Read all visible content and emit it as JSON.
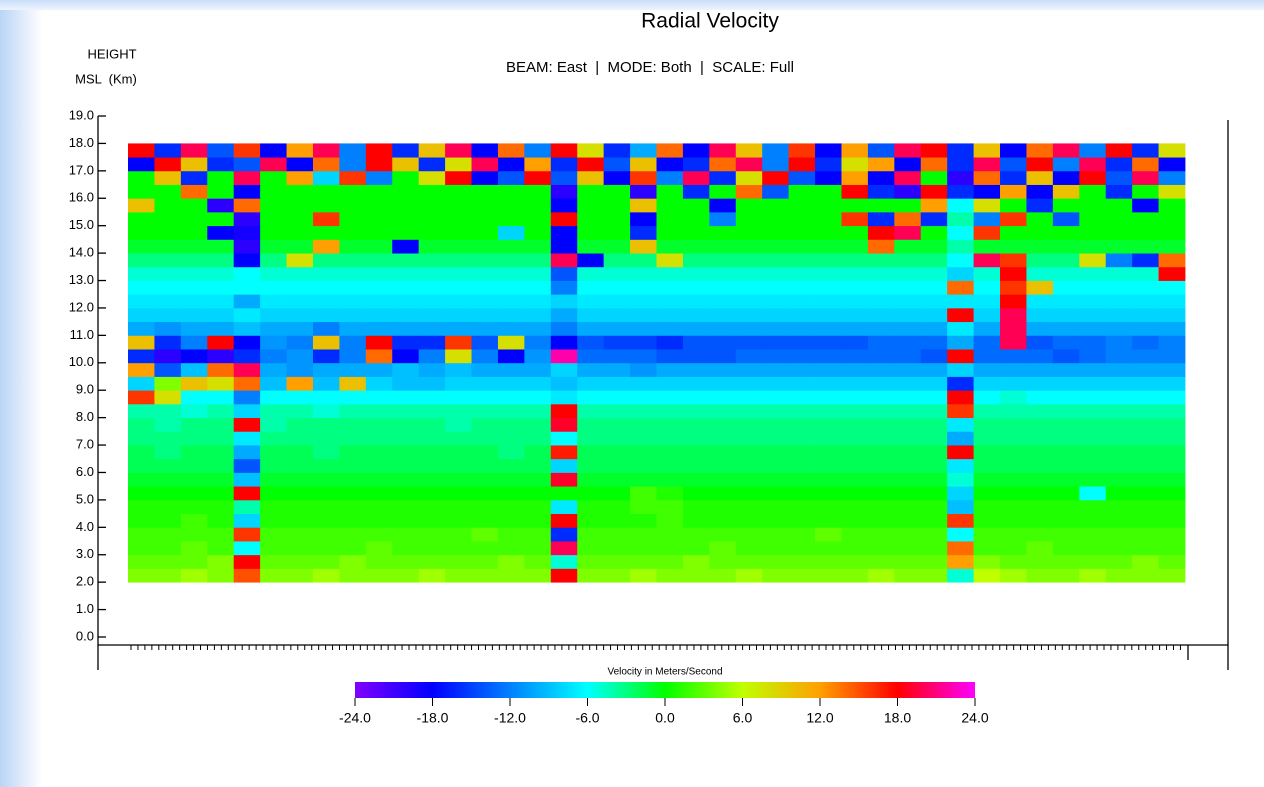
{
  "chart_data": {
    "type": "heatmap",
    "title": "Radial Velocity",
    "subtitle": "BEAM: East  |  MODE: Both  |  SCALE: Full",
    "ylabel": [
      "HEIGHT",
      "MSL  (Km)"
    ],
    "ylim": [
      0,
      19
    ],
    "yticks": [
      {
        "value": 0,
        "label": "0.0"
      },
      {
        "value": 1,
        "label": "1.0"
      },
      {
        "value": 2,
        "label": "2.0"
      },
      {
        "value": 3,
        "label": "3.0"
      },
      {
        "value": 4,
        "label": "4.0"
      },
      {
        "value": 5,
        "label": "5.0"
      },
      {
        "value": 6,
        "label": "6.0"
      },
      {
        "value": 7,
        "label": "7.0"
      },
      {
        "value": 8,
        "label": "8.0"
      },
      {
        "value": 9,
        "label": "9.0"
      },
      {
        "value": 10,
        "label": "10.0"
      },
      {
        "value": 11,
        "label": "11.0"
      },
      {
        "value": 12,
        "label": "12.0"
      },
      {
        "value": 13,
        "label": "13.0"
      },
      {
        "value": 14,
        "label": "14.0"
      },
      {
        "value": 15,
        "label": "15.0"
      },
      {
        "value": 16,
        "label": "16.0"
      },
      {
        "value": 17,
        "label": "17.0"
      },
      {
        "value": 18,
        "label": "18.0"
      },
      {
        "value": 19,
        "label": "19.0"
      }
    ],
    "y_bins": [
      2,
      2.5,
      3,
      3.5,
      4,
      4.5,
      5,
      5.5,
      6,
      6.5,
      7,
      7.5,
      8,
      8.5,
      9,
      9.5,
      10,
      10.5,
      11,
      11.5,
      12,
      12.5,
      13,
      13.5,
      14,
      14.5,
      15,
      15.5,
      16,
      16.5,
      17,
      17.5,
      18
    ],
    "categories": [
      null,
      null,
      null,
      null,
      null,
      null,
      null,
      null,
      null,
      null,
      null,
      null,
      null,
      null,
      null,
      null,
      null,
      null,
      null,
      null,
      null,
      null,
      null,
      null,
      null,
      null,
      null,
      null,
      null,
      null,
      null,
      null,
      null,
      null,
      null,
      null,
      null,
      null,
      null,
      null
    ],
    "values": [
      [
        4,
        4,
        5,
        4,
        15,
        4,
        4,
        5,
        4,
        4,
        4,
        5,
        4,
        4,
        4,
        4,
        18,
        4,
        4,
        5,
        4,
        4,
        4,
        5,
        4,
        4,
        4,
        4,
        5,
        4,
        4,
        -5,
        6,
        5,
        4,
        4,
        5,
        4,
        4,
        4
      ],
      [
        3,
        3,
        3,
        4,
        18,
        3,
        3,
        3,
        4,
        3,
        3,
        3,
        3,
        3,
        4,
        3,
        -5,
        3,
        3,
        3,
        3,
        4,
        3,
        3,
        3,
        3,
        3,
        3,
        3,
        3,
        3,
        12,
        4,
        3,
        3,
        3,
        3,
        3,
        4,
        3
      ],
      [
        2,
        2,
        3,
        2,
        -6,
        2,
        2,
        2,
        2,
        3,
        2,
        2,
        2,
        2,
        2,
        2,
        20,
        2,
        2,
        2,
        2,
        2,
        3,
        2,
        2,
        2,
        2,
        2,
        2,
        2,
        2,
        14,
        2,
        2,
        3,
        2,
        2,
        2,
        2,
        2
      ],
      [
        2,
        2,
        2,
        2,
        16,
        2,
        2,
        2,
        2,
        2,
        2,
        2,
        2,
        3,
        2,
        2,
        -16,
        2,
        2,
        2,
        2,
        2,
        2,
        2,
        2,
        2,
        3,
        2,
        2,
        2,
        2,
        -6,
        2,
        2,
        2,
        2,
        2,
        2,
        2,
        2
      ],
      [
        1,
        1,
        2,
        1,
        -8,
        1,
        1,
        1,
        1,
        1,
        1,
        1,
        1,
        1,
        1,
        1,
        18,
        1,
        1,
        1,
        2,
        1,
        1,
        1,
        1,
        1,
        1,
        1,
        1,
        1,
        1,
        16,
        1,
        1,
        1,
        1,
        1,
        1,
        1,
        1
      ],
      [
        1,
        1,
        1,
        1,
        -4,
        1,
        1,
        1,
        1,
        1,
        1,
        1,
        1,
        1,
        1,
        1,
        -7,
        1,
        1,
        2,
        2,
        1,
        1,
        1,
        1,
        1,
        1,
        1,
        1,
        1,
        1,
        -9,
        1,
        1,
        1,
        1,
        1,
        1,
        1,
        1
      ],
      [
        0,
        0,
        0,
        0,
        18,
        0,
        0,
        0,
        0,
        0,
        0,
        0,
        0,
        0,
        0,
        0,
        0,
        0,
        0,
        2,
        1,
        0,
        0,
        0,
        0,
        0,
        0,
        0,
        0,
        0,
        0,
        -8,
        0,
        0,
        0,
        0,
        -6,
        0,
        0,
        0
      ],
      [
        -1,
        -1,
        -1,
        -1,
        -9,
        -1,
        -1,
        -1,
        -1,
        -1,
        -1,
        -1,
        -1,
        -1,
        -1,
        -1,
        19,
        -1,
        -1,
        -1,
        -1,
        -1,
        -1,
        -1,
        -1,
        -1,
        -1,
        -1,
        -1,
        -1,
        -1,
        -5,
        -1,
        -1,
        -1,
        -1,
        -1,
        -1,
        -1,
        -1
      ],
      [
        -2,
        -2,
        -2,
        -2,
        -14,
        -2,
        -2,
        -2,
        -2,
        -2,
        -2,
        -2,
        -2,
        -2,
        -2,
        -2,
        -8,
        -2,
        -2,
        -2,
        -2,
        -2,
        -2,
        -2,
        -2,
        -2,
        -2,
        -2,
        -2,
        -2,
        -2,
        -7,
        -2,
        -2,
        -2,
        -2,
        -2,
        -2,
        -2,
        -2
      ],
      [
        -2,
        -3,
        -2,
        -2,
        -10,
        -2,
        -2,
        -3,
        -2,
        -2,
        -2,
        -2,
        -2,
        -2,
        -3,
        -2,
        17,
        -2,
        -2,
        -2,
        -2,
        -2,
        -2,
        -2,
        -2,
        -2,
        -2,
        -2,
        -2,
        -2,
        -2,
        18,
        -2,
        -2,
        -2,
        -2,
        -2,
        -2,
        -2,
        -2
      ],
      [
        -3,
        -3,
        -3,
        -3,
        -7,
        -3,
        -3,
        -3,
        -3,
        -3,
        -3,
        -3,
        -3,
        -3,
        -3,
        -3,
        -6,
        -3,
        -3,
        -3,
        -3,
        -3,
        -3,
        -3,
        -3,
        -3,
        -3,
        -3,
        -3,
        -3,
        -3,
        -10,
        -3,
        -3,
        -3,
        -3,
        -3,
        -3,
        -3,
        -3
      ],
      [
        -3,
        -4,
        -3,
        -3,
        18,
        -4,
        -3,
        -3,
        -3,
        -3,
        -3,
        -3,
        -4,
        -3,
        -3,
        -3,
        19,
        -3,
        -3,
        -3,
        -3,
        -3,
        -3,
        -3,
        -3,
        -3,
        -3,
        -3,
        -3,
        -3,
        -3,
        -7,
        -3,
        -3,
        -3,
        -3,
        -3,
        -3,
        -3,
        -3
      ],
      [
        -4,
        -4,
        -5,
        -4,
        -8,
        -4,
        -4,
        -5,
        -4,
        -4,
        -4,
        -4,
        -4,
        -4,
        -4,
        -4,
        18,
        -4,
        -4,
        -4,
        -4,
        -4,
        -4,
        -4,
        -4,
        -4,
        -4,
        -4,
        -4,
        -4,
        -4,
        16,
        -4,
        -4,
        -4,
        -4,
        -4,
        -4,
        -4,
        -4
      ],
      [
        16,
        8,
        -6,
        -6,
        -12,
        -6,
        -6,
        -6,
        -6,
        -6,
        -6,
        -6,
        -6,
        -6,
        -6,
        -6,
        -7,
        -6,
        -6,
        -6,
        -6,
        -6,
        -6,
        -6,
        -6,
        -6,
        -6,
        -6,
        -6,
        -6,
        -6,
        18,
        -6,
        -5,
        -6,
        -6,
        -6,
        -6,
        -6,
        -6
      ],
      [
        -8,
        4,
        10,
        8,
        14,
        -9,
        12,
        -9,
        10,
        -8,
        -9,
        -9,
        -8,
        -8,
        -8,
        -8,
        -9,
        -8,
        -8,
        -8,
        -8,
        -8,
        -8,
        -8,
        -8,
        -8,
        -8,
        -8,
        -8,
        -8,
        -8,
        -16,
        -8,
        -8,
        -8,
        -8,
        -8,
        -8,
        -8,
        -8
      ],
      [
        12,
        -14,
        -9,
        14,
        20,
        -10,
        -11,
        -10,
        -10,
        -10,
        -9,
        -10,
        -9,
        -10,
        -10,
        -10,
        -8,
        -10,
        -10,
        -11,
        -10,
        -10,
        -10,
        -10,
        -10,
        -10,
        -10,
        -10,
        -10,
        -10,
        -10,
        -8,
        -10,
        -10,
        -10,
        -10,
        -10,
        -10,
        -10,
        -10
      ],
      [
        -16,
        -20,
        -18,
        -20,
        -16,
        -12,
        -11,
        -16,
        -12,
        14,
        -18,
        -12,
        8,
        -12,
        -18,
        -11,
        22,
        -13,
        -13,
        -13,
        -14,
        -14,
        -14,
        -13,
        -13,
        -13,
        -13,
        -13,
        -13,
        -13,
        -14,
        18,
        -13,
        -13,
        -13,
        -14,
        -13,
        -12,
        -12,
        -12
      ],
      [
        10,
        -16,
        -12,
        18,
        -18,
        -11,
        -12,
        10,
        -12,
        18,
        -16,
        -16,
        16,
        -14,
        8,
        -12,
        -18,
        -14,
        -15,
        -15,
        -16,
        -14,
        -14,
        -14,
        -14,
        -14,
        -14,
        -14,
        -13,
        -13,
        -13,
        -10,
        -13,
        20,
        -14,
        -13,
        -13,
        -12,
        -13,
        -12
      ],
      [
        -10,
        -11,
        -10,
        -10,
        -9,
        -10,
        -10,
        -12,
        -10,
        -10,
        -10,
        -10,
        -10,
        -10,
        -10,
        -10,
        -12,
        -10,
        -10,
        -10,
        -10,
        -10,
        -10,
        -10,
        -10,
        -10,
        -10,
        -10,
        -10,
        -10,
        -10,
        -7,
        -10,
        20,
        -10,
        -10,
        -10,
        -10,
        -10,
        -10
      ],
      [
        -8,
        -8,
        -8,
        -8,
        -7,
        -8,
        -8,
        -8,
        -8,
        -8,
        -8,
        -8,
        -8,
        -8,
        -8,
        -8,
        -10,
        -8,
        -8,
        -8,
        -8,
        -8,
        -8,
        -8,
        -8,
        -8,
        -8,
        -8,
        -8,
        -8,
        -8,
        18,
        -8,
        20,
        -8,
        -8,
        -8,
        -8,
        -8,
        -8
      ],
      [
        -7,
        -7,
        -7,
        -7,
        -10,
        -7,
        -7,
        -7,
        -7,
        -7,
        -7,
        -7,
        -7,
        -7,
        -7,
        -7,
        -8,
        -7,
        -7,
        -7,
        -7,
        -7,
        -7,
        -7,
        -7,
        -7,
        -7,
        -7,
        -7,
        -7,
        -7,
        -7,
        -7,
        18,
        -7,
        -7,
        -7,
        -7,
        -7,
        -7
      ],
      [
        -6,
        -6,
        -6,
        -6,
        -6,
        -6,
        -6,
        -6,
        -6,
        -6,
        -6,
        -6,
        -6,
        -6,
        -6,
        -6,
        -12,
        -6,
        -6,
        -6,
        -6,
        -6,
        -6,
        -6,
        -6,
        -6,
        -6,
        -6,
        -6,
        -6,
        -6,
        14,
        -6,
        16,
        10,
        -6,
        -6,
        -6,
        -6,
        -6
      ],
      [
        -5,
        -5,
        -5,
        -5,
        -6,
        -5,
        -5,
        -5,
        -5,
        -5,
        -5,
        -5,
        -5,
        -5,
        -5,
        -5,
        -14,
        -5,
        -5,
        -5,
        -5,
        -5,
        -5,
        -5,
        -5,
        -5,
        -5,
        -5,
        -5,
        -5,
        -5,
        -8,
        -5,
        18,
        -5,
        -5,
        -5,
        -5,
        -5,
        18
      ],
      [
        -3,
        -3,
        -3,
        -3,
        -18,
        -3,
        8,
        -3,
        -3,
        -3,
        -3,
        -3,
        -3,
        -3,
        -3,
        -3,
        20,
        -18,
        -3,
        -3,
        8,
        -3,
        -3,
        -3,
        -3,
        -3,
        -3,
        -3,
        -3,
        -3,
        -3,
        -6,
        20,
        16,
        -3,
        -3,
        8,
        -12,
        -16,
        14
      ],
      [
        -1,
        -1,
        -1,
        -1,
        -20,
        -1,
        -1,
        12,
        -1,
        -1,
        -18,
        -1,
        -1,
        -1,
        -1,
        -1,
        -18,
        -1,
        -1,
        10,
        -1,
        -1,
        -1,
        -1,
        -1,
        -1,
        -1,
        -1,
        14,
        -1,
        -1,
        -4,
        -1,
        -1,
        -1,
        -1,
        -1,
        -1,
        -1,
        -1
      ],
      [
        0,
        0,
        0,
        -18,
        -19,
        0,
        0,
        0,
        0,
        0,
        0,
        0,
        0,
        0,
        -8,
        0,
        -18,
        0,
        0,
        -16,
        0,
        0,
        0,
        0,
        0,
        0,
        0,
        0,
        18,
        20,
        0,
        -6,
        16,
        0,
        0,
        0,
        0,
        0,
        0,
        0
      ],
      [
        0,
        0,
        0,
        0,
        -20,
        0,
        0,
        16,
        0,
        0,
        0,
        0,
        0,
        0,
        0,
        0,
        18,
        0,
        0,
        -18,
        0,
        0,
        -12,
        0,
        0,
        0,
        0,
        16,
        -16,
        14,
        -16,
        -4,
        -12,
        16,
        0,
        -14,
        0,
        0,
        0,
        0
      ],
      [
        10,
        0,
        0,
        -20,
        14,
        0,
        0,
        0,
        0,
        0,
        0,
        0,
        0,
        0,
        0,
        0,
        -18,
        0,
        0,
        10,
        0,
        0,
        -18,
        0,
        0,
        0,
        0,
        0,
        0,
        0,
        12,
        -6,
        8,
        0,
        -16,
        0,
        0,
        0,
        -18,
        0
      ],
      [
        0,
        0,
        14,
        0,
        -18,
        0,
        0,
        0,
        0,
        0,
        0,
        0,
        0,
        0,
        0,
        0,
        -20,
        0,
        0,
        -20,
        0,
        -16,
        0,
        14,
        -14,
        0,
        0,
        18,
        -16,
        -20,
        18,
        -16,
        -18,
        12,
        -18,
        10,
        0,
        -16,
        0,
        8
      ],
      [
        0,
        10,
        -16,
        0,
        20,
        0,
        12,
        -8,
        16,
        -12,
        0,
        8,
        18,
        -18,
        -14,
        18,
        -14,
        10,
        -18,
        16,
        -12,
        20,
        -16,
        8,
        18,
        -14,
        -18,
        12,
        -18,
        20,
        0,
        -20,
        14,
        -16,
        10,
        -18,
        18,
        -14,
        20,
        -12
      ],
      [
        -18,
        18,
        10,
        -16,
        -14,
        20,
        -18,
        14,
        -12,
        18,
        10,
        -16,
        8,
        20,
        -18,
        12,
        -16,
        18,
        -14,
        10,
        -18,
        -16,
        14,
        20,
        -12,
        18,
        -16,
        8,
        12,
        -18,
        14,
        -16,
        20,
        -14,
        18,
        -12,
        20,
        -16,
        14,
        -18
      ],
      [
        18,
        -16,
        20,
        -14,
        16,
        -18,
        12,
        20,
        -12,
        18,
        -16,
        10,
        20,
        -18,
        14,
        -12,
        18,
        8,
        -16,
        -10,
        14,
        -18,
        20,
        10,
        -12,
        16,
        -18,
        12,
        -14,
        20,
        18,
        -16,
        10,
        -18,
        14,
        20,
        -12,
        18,
        -16,
        8
      ]
    ],
    "colorbar": {
      "label": "Velocity in Meters/Second",
      "clim": [
        -24,
        24
      ],
      "ticks": [
        {
          "value": -24,
          "label": "-24.0"
        },
        {
          "value": -18,
          "label": "-18.0"
        },
        {
          "value": -12,
          "label": "-12.0"
        },
        {
          "value": -6,
          "label": "-6.0"
        },
        {
          "value": 0,
          "label": "0.0"
        },
        {
          "value": 6,
          "label": "6.0"
        },
        {
          "value": 12,
          "label": "12.0"
        },
        {
          "value": 18,
          "label": "18.0"
        },
        {
          "value": 24,
          "label": "24.0"
        }
      ]
    },
    "colorscale": [
      [
        -24,
        "#8000ff"
      ],
      [
        -18,
        "#0000ff"
      ],
      [
        -12,
        "#0080ff"
      ],
      [
        -6,
        "#00ffff"
      ],
      [
        0,
        "#00ff00"
      ],
      [
        6,
        "#c0ff00"
      ],
      [
        12,
        "#ffa000"
      ],
      [
        18,
        "#ff0000"
      ],
      [
        24,
        "#ff00ff"
      ]
    ],
    "grid": false
  }
}
